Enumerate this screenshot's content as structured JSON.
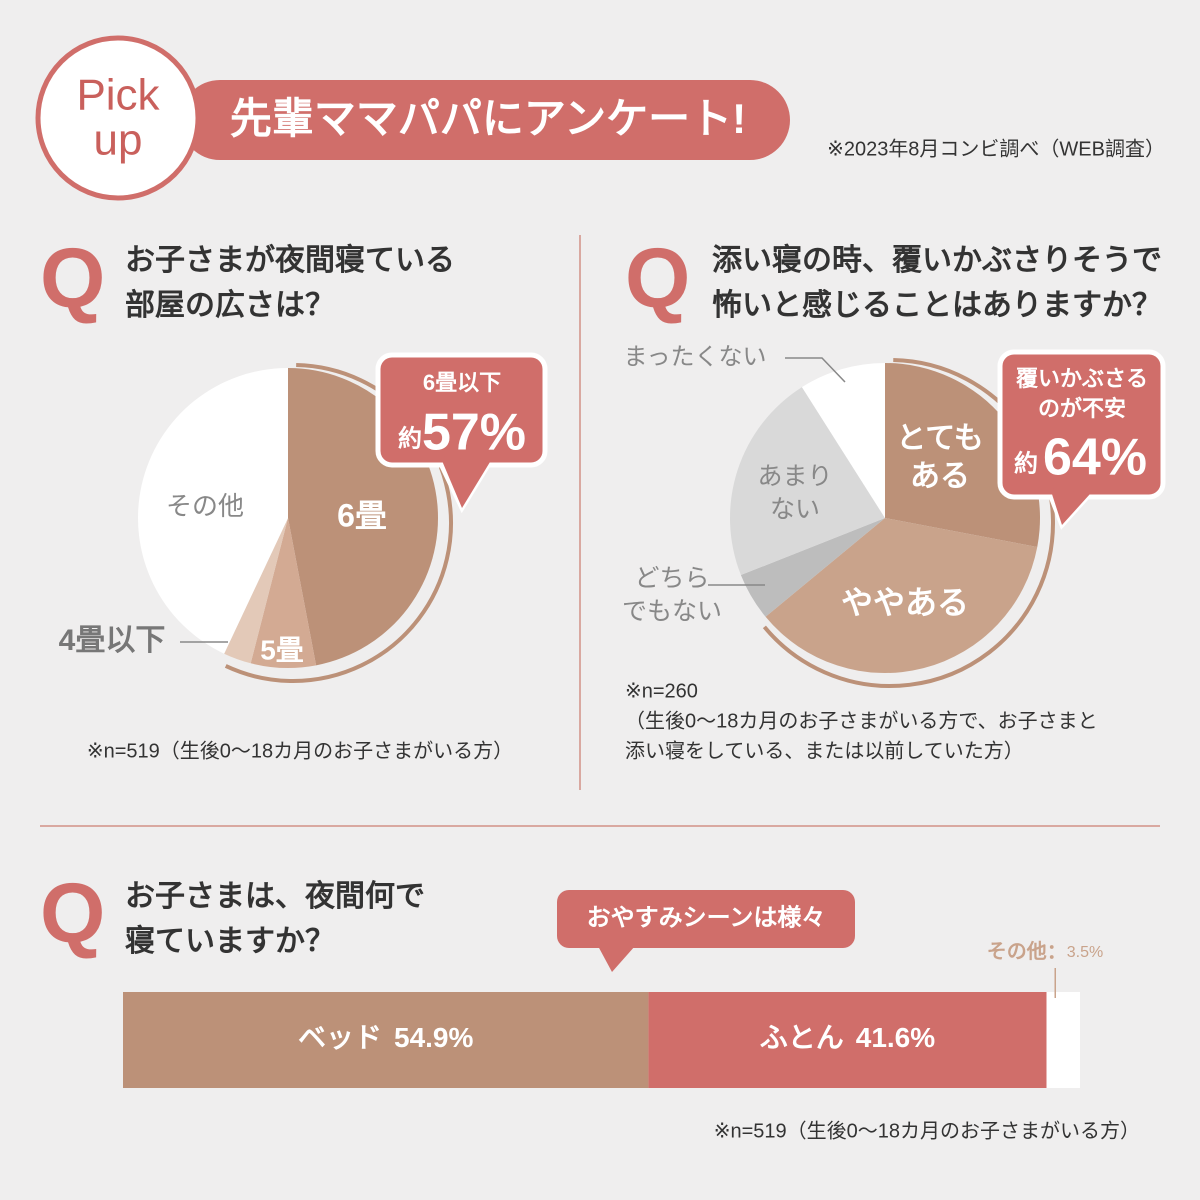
{
  "header": {
    "badge_lines": [
      "Pick",
      "up"
    ],
    "title": "先輩ママパパにアンケート!",
    "note": "※2023年8月コンビ調べ（WEB調査）"
  },
  "chart_data": [
    {
      "type": "pie",
      "mark": "Q",
      "title_lines": [
        "お子さまが夜間寝ている",
        "部屋の広さは？"
      ],
      "labels": [
        [
          "6畳"
        ],
        [
          "5畳"
        ],
        [
          "4畳以下"
        ],
        [
          "その他"
        ]
      ],
      "values": [
        47,
        7,
        3,
        43
      ],
      "colors": [
        "#bc9178",
        "#d3aa93",
        "#e3c9b8",
        "#ffffff"
      ],
      "callout": {
        "lines": [
          "6畳以下"
        ],
        "prefix": "約",
        "value_label": "57%"
      },
      "note": "※n=519（生後0〜18カ月のお子さまがいる方）"
    },
    {
      "type": "pie",
      "mark": "Q",
      "title_lines": [
        "添い寝の時、覆いかぶさりそうで",
        "怖いと感じることはありますか？"
      ],
      "labels": [
        [
          "とても",
          "ある"
        ],
        [
          "ややある"
        ],
        [
          "どちら",
          "でもない"
        ],
        [
          "あまり",
          "ない"
        ],
        [
          "まったくない"
        ]
      ],
      "values": [
        28,
        36,
        5,
        22,
        9
      ],
      "colors": [
        "#bc9178",
        "#c9a38b",
        "#bdbdbd",
        "#d9d9d9",
        "#ffffff"
      ],
      "callout": {
        "lines": [
          "覆いかぶさる",
          "のが不安"
        ],
        "prefix": "約",
        "value_label": "64%"
      },
      "note_lines": [
        "※n=260",
        "（生後0〜18カ月のお子さまがいる方で、お子さまと",
        "添い寝をしている、または以前していた方）"
      ]
    },
    {
      "type": "stacked-bar",
      "mark": "Q",
      "title_lines": [
        "お子さまは、夜間何で",
        "寝ていますか？"
      ],
      "categories": [
        "ベッド",
        "ふとん",
        "その他"
      ],
      "values": [
        54.9,
        41.6,
        3.5
      ],
      "value_labels": [
        "54.9%",
        "41.6%",
        "3.5%"
      ],
      "colors": [
        "#bc9178",
        "#d06e6a",
        "#ffffff"
      ],
      "xlim": [
        0,
        100
      ],
      "outside_separator": "：",
      "callout": "おやすみシーンは様々",
      "note": "※n=519（生後0〜18カ月のお子さまがいる方）"
    }
  ]
}
